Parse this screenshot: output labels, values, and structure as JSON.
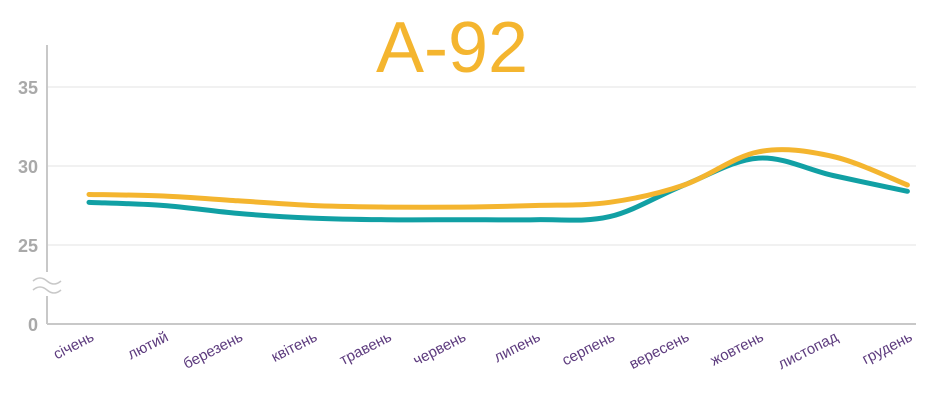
{
  "chart_data": {
    "type": "line",
    "title": "А-92",
    "xlabel": "",
    "ylabel": "",
    "categories": [
      "січень",
      "лютий",
      "березень",
      "квітень",
      "травень",
      "червень",
      "липень",
      "серпень",
      "вересень",
      "жовтень",
      "листопад",
      "грудень"
    ],
    "y_ticks": [
      "0",
      "25",
      "30",
      "35"
    ],
    "axis_break": true,
    "ylim": [
      0,
      37
    ],
    "grid": true,
    "legend": "none",
    "series": [
      {
        "color": "#f4b52f",
        "values": [
          28.2,
          28.1,
          27.8,
          27.5,
          27.4,
          27.4,
          27.5,
          27.7,
          28.8,
          30.9,
          30.6,
          28.8
        ]
      },
      {
        "color": "#11a0a4",
        "values": [
          27.7,
          27.5,
          27.0,
          26.7,
          26.6,
          26.6,
          26.6,
          26.8,
          28.8,
          30.5,
          29.4,
          28.4
        ]
      }
    ],
    "colors": {
      "title": "#f4b52f",
      "ticks_y": "#a9a9a9",
      "ticks_x": "#5d3b7e",
      "axis": "#c8c8c8",
      "grid": "#e3e3e3"
    }
  }
}
